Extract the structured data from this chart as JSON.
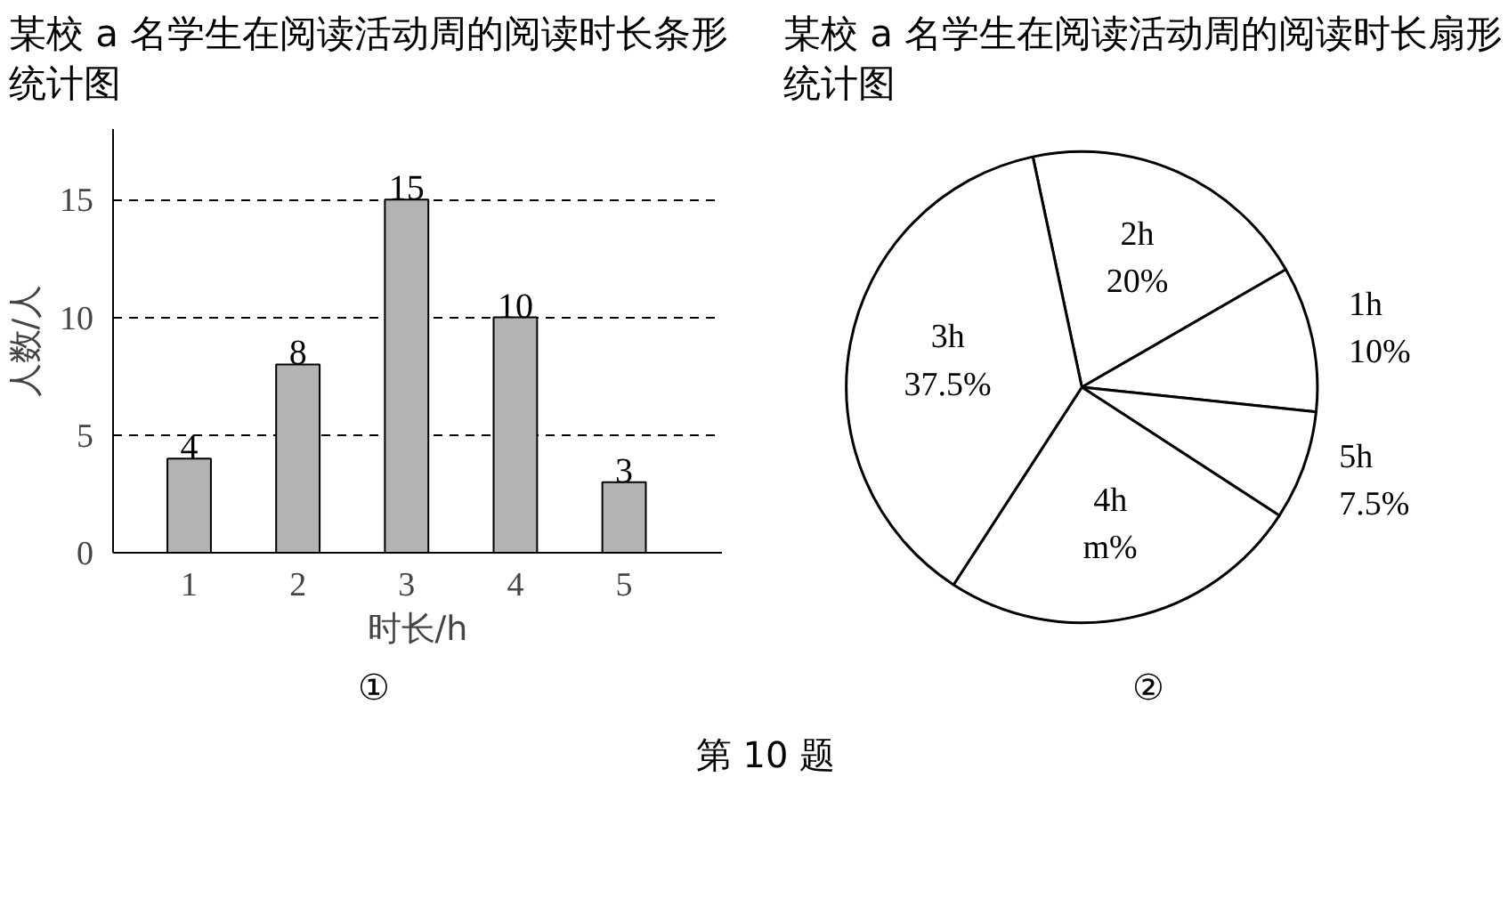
{
  "chart_data": [
    {
      "type": "bar",
      "title": "某校 a 名学生在阅读活动周的阅读时长条形统计图",
      "xlabel": "时长/h",
      "ylabel": "人数/人",
      "categories": [
        "1",
        "2",
        "3",
        "4",
        "5"
      ],
      "values": [
        4,
        8,
        15,
        10,
        3
      ],
      "color": "#b3b3b3",
      "ylim": [
        0,
        18
      ],
      "yticks": [
        0,
        5,
        10,
        15
      ],
      "grid": "y",
      "data_labels": true,
      "annotations": [
        "①"
      ]
    },
    {
      "type": "pie",
      "title": "某校 a 名学生在阅读活动周的阅读时长扇形统计图",
      "categories": [
        "2h",
        "1h",
        "5h",
        "4h",
        "3h"
      ],
      "values": [
        20,
        10,
        7.5,
        25,
        37.5
      ],
      "value_labels": [
        "20%",
        "10%",
        "7.5%",
        "m%",
        "37.5%"
      ],
      "colors": [
        "#ffffff",
        "#ffffff",
        "#ffffff",
        "#ffffff",
        "#ffffff"
      ],
      "annotations": [
        "②",
        "第 10 题"
      ]
    }
  ]
}
